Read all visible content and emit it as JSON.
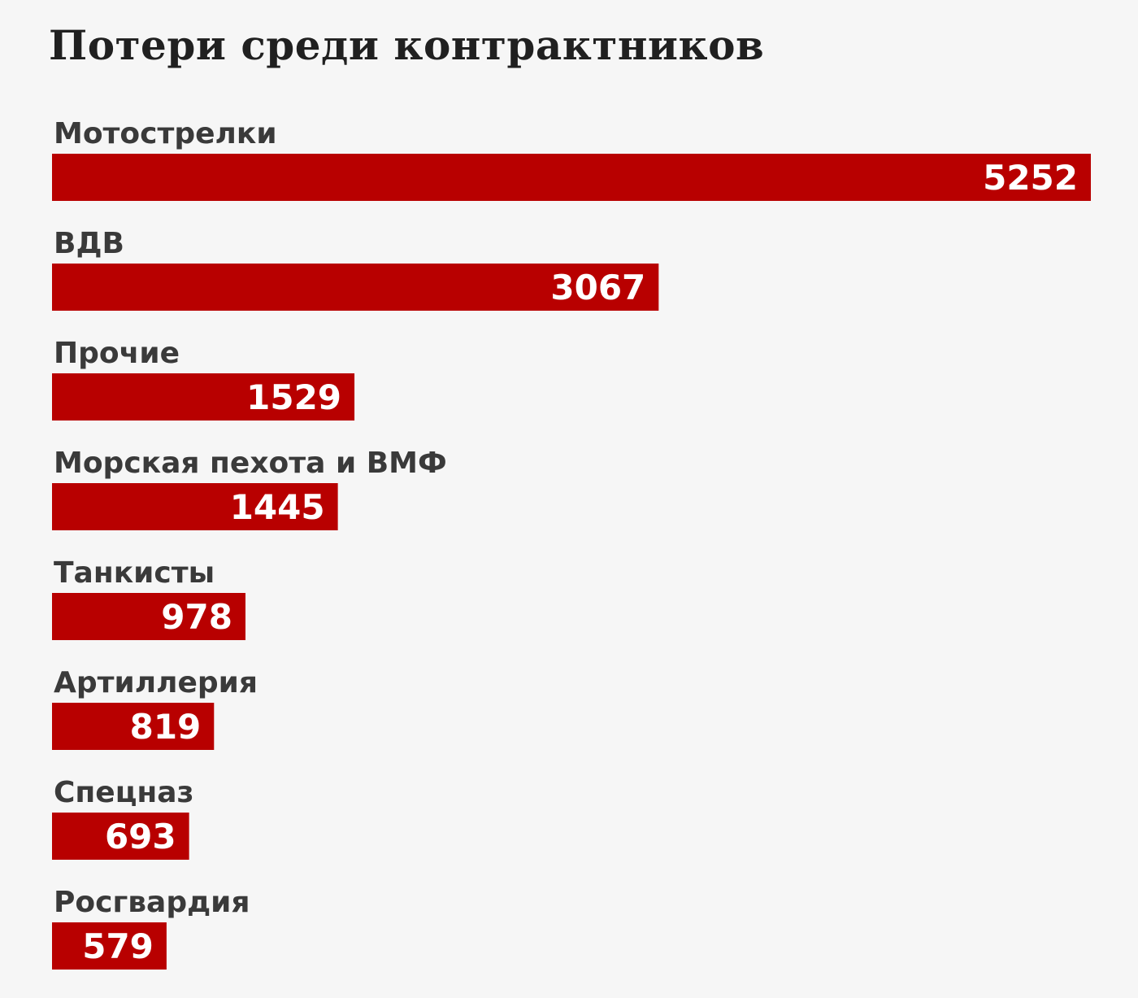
{
  "chart_data": {
    "type": "bar",
    "orientation": "horizontal",
    "title": "Потери среди контрактников",
    "xlabel": "",
    "ylabel": "",
    "categories": [
      "Мотострелки",
      "ВДВ",
      "Прочие",
      "Морская пехота и ВМФ",
      "Танкисты",
      "Артиллерия",
      "Спецназ",
      "Росгвардия"
    ],
    "values": [
      5252,
      3067,
      1529,
      1445,
      978,
      819,
      693,
      579
    ],
    "xlim": [
      0,
      5252
    ],
    "grid": false,
    "legend": "none",
    "colors": {
      "bar": "#b80000",
      "value_text": "#ffffff",
      "category_text": "#3a3a3a",
      "title_text": "#202020",
      "background": "#f6f6f6"
    }
  }
}
